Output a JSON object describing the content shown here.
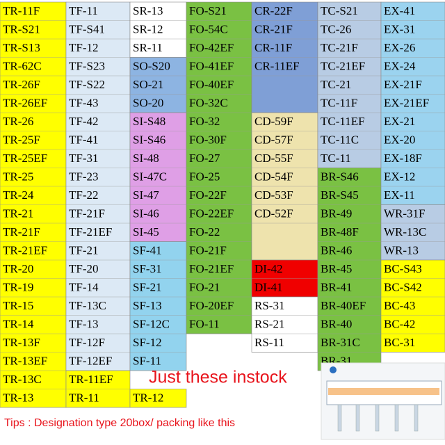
{
  "columns": [
    [
      {
        "items": [
          "TR-11F",
          "TR-S21",
          "TR-S13",
          "TR-62C",
          "TR-26F",
          "TR-26EF",
          "TR-26",
          "TR-25F",
          "TR-25EF",
          "TR-25",
          "TR-24",
          "TR-21",
          "TR-21F",
          "TR-21EF",
          "TR-20",
          "TR-19",
          "TR-15",
          "TR-14",
          "TR-13F",
          "TR-13EF",
          "TR-13C",
          "TR-13"
        ]
      }
    ],
    [
      {
        "items": [
          "TF-11",
          "TF-S41",
          "TF-12",
          "TF-S23",
          "TF-S22",
          "TF-43",
          "TF-42",
          "TF-41",
          "TF-31",
          "TF-23",
          "TF-22",
          "TF-21F",
          "TF-21EF",
          "TF-21",
          "TF-20",
          "TF-14",
          "TF-13C",
          "TF-13",
          "TF-12F",
          "TF-12EF"
        ]
      },
      {
        "items": [
          "TR-11EF",
          "TR-11"
        ]
      }
    ],
    [
      {
        "items": [
          "SR-13",
          "SR-12",
          "SR-11"
        ]
      },
      {
        "items": [
          "SO-S20",
          "SO-21",
          "SO-20"
        ]
      },
      {
        "items": [
          "SI-S48",
          "SI-S46",
          "SI-48",
          "SI-47C",
          "SI-47",
          "SI-46",
          "SI-45"
        ]
      },
      {
        "items": [
          "SF-41",
          "SF-31",
          "SF-21",
          "SF-13",
          "SF-12C",
          "SF-12",
          "SF-11"
        ]
      },
      {
        "items": [
          "TR-12"
        ]
      }
    ],
    [
      {
        "items": [
          "FO-S21",
          "FO-54C",
          "FO-42EF",
          "FO-41EF",
          "FO-40EF",
          "FO-32C",
          "FO-32",
          "FO-30F",
          "FO-27",
          "FO-25",
          "FO-22F",
          "FO-22EF",
          "FO-22",
          "FO-21F",
          "FO-21EF",
          "FO-21",
          "FO-20EF",
          "FO-11"
        ]
      }
    ],
    [
      {
        "items": [
          "CR-22F",
          "CR-21F",
          "CR-11F",
          "CR-11EF"
        ]
      },
      {
        "items": [
          "CD-59F",
          "CD-57F",
          "CD-55F",
          "CD-54F",
          "CD-53F",
          "CD-52F"
        ]
      },
      {
        "items": [
          "DI-42",
          "DI-41"
        ]
      },
      {
        "items": [
          "RS-31",
          "RS-21",
          "RS-11"
        ]
      }
    ],
    [
      {
        "items": [
          "TC-S21",
          "TC-26",
          "TC-21F",
          "TC-21EF",
          "TC-21",
          "TC-11F",
          "TC-11EF",
          "TC-11C",
          "TC-11"
        ]
      },
      {
        "items": [
          "BR-S46",
          "BR-S45",
          "BR-49",
          "BR-48F",
          "BR-46",
          "BR-45",
          "BR-41",
          "BR-40EF",
          "BR-40",
          "BR-31C",
          "BR-31"
        ]
      }
    ],
    [
      {
        "items": [
          "EX-41",
          "EX-31",
          "EX-26",
          "EX-24",
          "EX-21F",
          "EX-21EF",
          "EX-21",
          "EX-20",
          "EX-18F",
          "EX-12",
          "EX-11"
        ]
      },
      {
        "items": [
          "WR-31F",
          "WR-13C",
          "WR-13"
        ]
      },
      {
        "items": [
          "BC-S43",
          "BC-S42",
          "BC-43",
          "BC-42",
          "BC-31"
        ]
      }
    ]
  ],
  "notice": "Just these instock",
  "tips": "Tips : Designation type 20box/ packing like this"
}
